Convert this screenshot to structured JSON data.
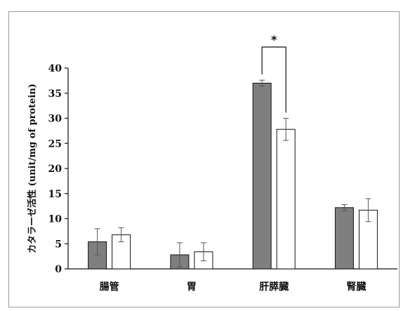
{
  "chart_data": {
    "type": "bar",
    "ylabel": "カタラーゼ活性 (unit/mg of protein)",
    "ylim": [
      0,
      40
    ],
    "yticks": [
      0,
      5,
      10,
      15,
      20,
      25,
      30,
      35,
      40
    ],
    "categories": [
      "腸管",
      "胃",
      "肝膵臓",
      "腎臓"
    ],
    "series": [
      {
        "values": [
          5.4,
          2.8,
          37.0,
          12.2
        ],
        "errors": [
          2.6,
          2.4,
          0.6,
          0.6
        ],
        "color": "#7f7f7f"
      },
      {
        "values": [
          6.8,
          3.4,
          27.8,
          11.7
        ],
        "errors": [
          1.4,
          1.8,
          2.2,
          2.3
        ],
        "color": "#ffffff"
      }
    ],
    "annotations": [
      {
        "text": "*",
        "category": "肝膵臓"
      }
    ],
    "grid": false,
    "legend": "none"
  }
}
